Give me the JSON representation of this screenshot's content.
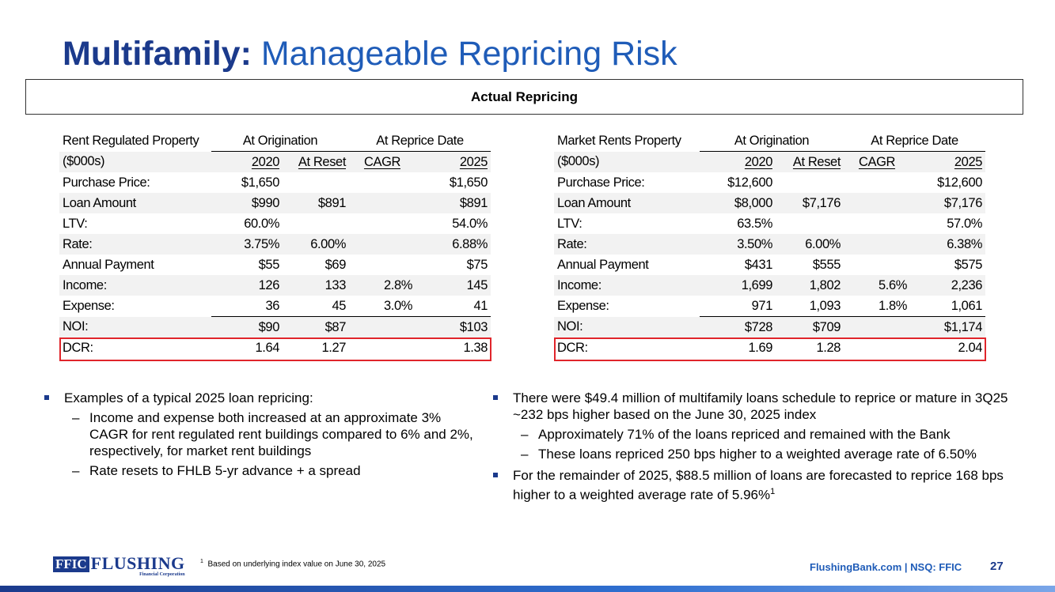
{
  "title": {
    "bold": "Multifamily:",
    "rest": " Manageable Repricing Risk"
  },
  "box_title": "Actual Repricing",
  "tables": [
    {
      "property": "Rent Regulated Property",
      "units": "($000s)",
      "group1": "At Origination",
      "group2": "At Reprice Date",
      "cols": [
        "2020",
        "At Reset",
        "CAGR",
        "2025"
      ],
      "rows": [
        [
          "Purchase Price:",
          "$1,650",
          "",
          "",
          "$1,650"
        ],
        [
          "Loan Amount",
          "$990",
          "$891",
          "",
          "$891"
        ],
        [
          "LTV:",
          "60.0%",
          "",
          "",
          "54.0%"
        ],
        [
          "Rate:",
          "3.75%",
          "6.00%",
          "",
          "6.88%"
        ],
        [
          "Annual Payment",
          "$55",
          "$69",
          "",
          "$75"
        ],
        [
          "Income:",
          "126",
          "133",
          "2.8%",
          "145"
        ],
        [
          "Expense:",
          "36",
          "45",
          "3.0%",
          "41"
        ],
        [
          "NOI:",
          "$90",
          "$87",
          "",
          "$103"
        ],
        [
          "DCR:",
          "1.64",
          "1.27",
          "",
          "1.38"
        ]
      ]
    },
    {
      "property": "Market Rents Property",
      "units": "($000s)",
      "group1": "At Origination",
      "group2": "At Reprice Date",
      "cols": [
        "2020",
        "At Reset",
        "CAGR",
        "2025"
      ],
      "rows": [
        [
          "Purchase Price:",
          "$12,600",
          "",
          "",
          "$12,600"
        ],
        [
          "Loan Amount",
          "$8,000",
          "$7,176",
          "",
          "$7,176"
        ],
        [
          "LTV:",
          "63.5%",
          "",
          "",
          "57.0%"
        ],
        [
          "Rate:",
          "3.50%",
          "6.00%",
          "",
          "6.38%"
        ],
        [
          "Annual Payment",
          "$431",
          "$555",
          "",
          "$575"
        ],
        [
          "Income:",
          "1,699",
          "1,802",
          "5.6%",
          "2,236"
        ],
        [
          "Expense:",
          "971",
          "1,093",
          "1.8%",
          "1,061"
        ],
        [
          "NOI:",
          "$728",
          "$709",
          "",
          "$1,174"
        ],
        [
          "DCR:",
          "1.69",
          "1.28",
          "",
          "2.04"
        ]
      ]
    }
  ],
  "left_bullets": {
    "main": "Examples of a typical 2025 loan repricing:",
    "subs": [
      "Income and expense both increased at an approximate 3% CAGR for rent regulated rent buildings compared to 6% and 2%, respectively, for market rent buildings",
      "Rate resets to FHLB 5-yr advance + a spread"
    ]
  },
  "right_bullets": {
    "b1": "There were $49.4 million of multifamily loans schedule to reprice or mature in 3Q25 ~232 bps higher based on the June 30, 2025 index",
    "b1_subs": [
      "Approximately 71% of the loans repriced and remained with the Bank",
      "These loans repriced 250 bps higher to a weighted average rate of 6.50%"
    ],
    "b2": "For the remainder of 2025, $88.5 million of loans are forecasted to reprice 168 bps higher to a weighted average rate of 5.96%",
    "b2_sup": "1"
  },
  "logo": {
    "ffic": "FFIC",
    "flushing": "FLUSHING",
    "sub": "Financial Corporation"
  },
  "footnote": {
    "num": "1",
    "text": "Based on underlying index value on June 30, 2025"
  },
  "site": "FlushingBank.com | NSQ: FFIC",
  "page_number": "27",
  "colors": {
    "title_bold": "#1b3a8c",
    "title_rest": "#1f5cb8",
    "highlight": "#e0252b",
    "bullet": "#1b3a8c"
  }
}
